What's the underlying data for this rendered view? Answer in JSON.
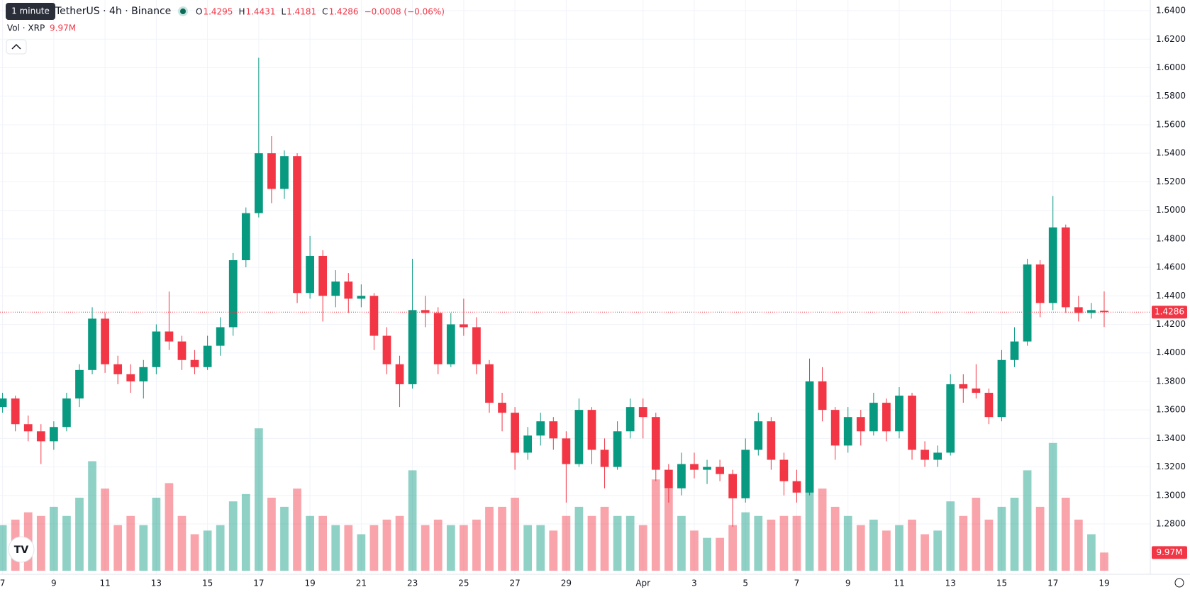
{
  "chart_data": {
    "type": "candlestick",
    "header": {
      "symbol": "TetherUS · 4h · Binance",
      "tooltip": "1 minute",
      "ohlc": [
        {
          "label": "O",
          "value": "1.4295"
        },
        {
          "label": "H",
          "value": "1.4431"
        },
        {
          "label": "L",
          "value": "1.4181"
        },
        {
          "label": "C",
          "value": "1.4286"
        }
      ],
      "change": "−0.0008 (−0.06%)",
      "vol_label": "Vol · XRP",
      "vol_value": "9.97M",
      "price_tag": "1.4286"
    },
    "up_color": "#089981",
    "down_color": "#f23645",
    "grid": true,
    "x": [
      0,
      0.5,
      1,
      1.5,
      2,
      2.5,
      3,
      3.5,
      4,
      4.5,
      5,
      5.5,
      6,
      6.5,
      7,
      7.5,
      8,
      8.5,
      9,
      9.5,
      10,
      10.5,
      11,
      11.5,
      12,
      12.5,
      13,
      13.5,
      14,
      14.5,
      15,
      15.5,
      16,
      16.5,
      17,
      17.5,
      18,
      18.5,
      19,
      19.5,
      20,
      20.5,
      21,
      21.5,
      22,
      22.5,
      23,
      23.5,
      24,
      24.5,
      25,
      25.5,
      26,
      26.5,
      27,
      27.5,
      28,
      28.5,
      29,
      29.5,
      30,
      30.5,
      31,
      31.5,
      32,
      32.5,
      33,
      33.5,
      34,
      34.5,
      35,
      35.5,
      36,
      36.5,
      37,
      37.5,
      38,
      38.5,
      39,
      39.5,
      40,
      40.5,
      41,
      41.5,
      42,
      42.5,
      43
    ],
    "open": [
      1.362,
      1.368,
      1.35,
      1.345,
      1.338,
      1.348,
      1.368,
      1.388,
      1.424,
      1.392,
      1.385,
      1.38,
      1.39,
      1.415,
      1.408,
      1.395,
      1.39,
      1.405,
      1.418,
      1.465,
      1.498,
      1.54,
      1.515,
      1.538,
      1.442,
      1.468,
      1.44,
      1.45,
      1.438,
      1.44,
      1.412,
      1.392,
      1.378,
      1.43,
      1.428,
      1.392,
      1.42,
      1.418,
      1.392,
      1.365,
      1.358,
      1.33,
      1.342,
      1.352,
      1.34,
      1.322,
      1.36,
      1.332,
      1.32,
      1.345,
      1.362,
      1.355,
      1.318,
      1.305,
      1.322,
      1.318,
      1.32,
      1.315,
      1.298,
      1.332,
      1.352,
      1.325,
      1.31,
      1.302,
      1.38,
      1.36,
      1.335,
      1.355,
      1.345,
      1.365,
      1.345,
      1.37,
      1.332,
      1.325,
      1.33,
      1.378,
      1.375,
      1.372,
      1.355,
      1.395,
      1.408,
      1.462,
      1.435,
      1.488,
      1.432,
      1.428,
      1.4295
    ],
    "high": [
      1.372,
      1.37,
      1.356,
      1.35,
      1.352,
      1.372,
      1.392,
      1.432,
      1.428,
      1.398,
      1.392,
      1.395,
      1.42,
      1.443,
      1.412,
      1.402,
      1.412,
      1.425,
      1.47,
      1.502,
      1.607,
      1.552,
      1.542,
      1.54,
      1.482,
      1.472,
      1.458,
      1.456,
      1.448,
      1.442,
      1.418,
      1.398,
      1.466,
      1.44,
      1.432,
      1.428,
      1.438,
      1.425,
      1.395,
      1.372,
      1.362,
      1.348,
      1.358,
      1.355,
      1.345,
      1.368,
      1.362,
      1.34,
      1.352,
      1.368,
      1.368,
      1.358,
      1.322,
      1.33,
      1.33,
      1.325,
      1.325,
      1.318,
      1.34,
      1.358,
      1.355,
      1.33,
      1.318,
      1.396,
      1.39,
      1.362,
      1.362,
      1.36,
      1.372,
      1.368,
      1.376,
      1.372,
      1.338,
      1.335,
      1.385,
      1.385,
      1.392,
      1.375,
      1.402,
      1.418,
      1.466,
      1.465,
      1.51,
      1.49,
      1.44,
      1.435,
      1.4431
    ],
    "low": [
      1.358,
      1.345,
      1.338,
      1.322,
      1.332,
      1.345,
      1.362,
      1.385,
      1.386,
      1.378,
      1.372,
      1.368,
      1.385,
      1.402,
      1.388,
      1.385,
      1.388,
      1.398,
      1.412,
      1.46,
      1.495,
      1.505,
      1.508,
      1.435,
      1.438,
      1.422,
      1.432,
      1.428,
      1.432,
      1.402,
      1.385,
      1.362,
      1.375,
      1.418,
      1.385,
      1.39,
      1.412,
      1.385,
      1.358,
      1.345,
      1.318,
      1.325,
      1.335,
      1.332,
      1.295,
      1.32,
      1.322,
      1.305,
      1.318,
      1.34,
      1.34,
      1.31,
      1.295,
      1.3,
      1.312,
      1.308,
      1.31,
      1.278,
      1.295,
      1.328,
      1.318,
      1.3,
      1.295,
      1.3,
      1.352,
      1.325,
      1.33,
      1.335,
      1.342,
      1.338,
      1.34,
      1.325,
      1.32,
      1.32,
      1.328,
      1.365,
      1.368,
      1.35,
      1.352,
      1.39,
      1.405,
      1.425,
      1.43,
      1.428,
      1.422,
      1.424,
      1.4181
    ],
    "close": [
      1.368,
      1.35,
      1.345,
      1.338,
      1.348,
      1.368,
      1.388,
      1.424,
      1.392,
      1.385,
      1.38,
      1.39,
      1.415,
      1.408,
      1.395,
      1.39,
      1.405,
      1.418,
      1.465,
      1.498,
      1.54,
      1.515,
      1.538,
      1.442,
      1.468,
      1.44,
      1.45,
      1.438,
      1.44,
      1.412,
      1.392,
      1.378,
      1.43,
      1.428,
      1.392,
      1.42,
      1.418,
      1.392,
      1.365,
      1.358,
      1.33,
      1.342,
      1.352,
      1.34,
      1.322,
      1.36,
      1.332,
      1.32,
      1.345,
      1.362,
      1.355,
      1.318,
      1.305,
      1.322,
      1.318,
      1.32,
      1.315,
      1.298,
      1.332,
      1.352,
      1.325,
      1.31,
      1.302,
      1.38,
      1.36,
      1.335,
      1.355,
      1.345,
      1.365,
      1.345,
      1.37,
      1.332,
      1.325,
      1.33,
      1.378,
      1.375,
      1.372,
      1.355,
      1.395,
      1.408,
      1.462,
      1.435,
      1.488,
      1.432,
      1.428,
      1.43,
      1.4286
    ],
    "volume": [
      25,
      28,
      32,
      30,
      35,
      30,
      40,
      60,
      45,
      25,
      30,
      25,
      40,
      48,
      30,
      20,
      22,
      25,
      38,
      42,
      78,
      40,
      35,
      45,
      30,
      30,
      25,
      25,
      20,
      25,
      28,
      30,
      55,
      25,
      28,
      25,
      25,
      28,
      35,
      35,
      40,
      25,
      25,
      22,
      30,
      35,
      30,
      35,
      30,
      30,
      25,
      50,
      45,
      30,
      22,
      18,
      18,
      25,
      32,
      30,
      28,
      30,
      30,
      50,
      45,
      35,
      30,
      25,
      28,
      22,
      25,
      28,
      20,
      22,
      38,
      30,
      40,
      28,
      35,
      40,
      55,
      35,
      70,
      40,
      28,
      20,
      9.97
    ],
    "xlim": [
      -0.1,
      44.8
    ],
    "ylim": [
      1.2447,
      1.6475
    ],
    "vlim": [
      0,
      80
    ],
    "xticks": [
      {
        "value": 0,
        "label": "7"
      },
      {
        "value": 2,
        "label": "9"
      },
      {
        "value": 4,
        "label": "11"
      },
      {
        "value": 6,
        "label": "13"
      },
      {
        "value": 8,
        "label": "15"
      },
      {
        "value": 10,
        "label": "17"
      },
      {
        "value": 12,
        "label": "19"
      },
      {
        "value": 14,
        "label": "21"
      },
      {
        "value": 16,
        "label": "23"
      },
      {
        "value": 18,
        "label": "25"
      },
      {
        "value": 20,
        "label": "27"
      },
      {
        "value": 22,
        "label": "29"
      },
      {
        "value": 25,
        "label": "Apr"
      },
      {
        "value": 27,
        "label": "3"
      },
      {
        "value": 29,
        "label": "5"
      },
      {
        "value": 31,
        "label": "7"
      },
      {
        "value": 33,
        "label": "9"
      },
      {
        "value": 35,
        "label": "11"
      },
      {
        "value": 37,
        "label": "13"
      },
      {
        "value": 39,
        "label": "15"
      },
      {
        "value": 41,
        "label": "17"
      },
      {
        "value": 43,
        "label": "19"
      }
    ],
    "yticks": [
      {
        "value": 1.28,
        "label": "1.2800"
      },
      {
        "value": 1.3,
        "label": "1.3000"
      },
      {
        "value": 1.32,
        "label": "1.3200"
      },
      {
        "value": 1.34,
        "label": "1.3400"
      },
      {
        "value": 1.36,
        "label": "1.3600"
      },
      {
        "value": 1.38,
        "label": "1.3800"
      },
      {
        "value": 1.4,
        "label": "1.4000"
      },
      {
        "value": 1.42,
        "label": "1.4200"
      },
      {
        "value": 1.44,
        "label": "1.4400"
      },
      {
        "value": 1.46,
        "label": "1.4600"
      },
      {
        "value": 1.48,
        "label": "1.4800"
      },
      {
        "value": 1.5,
        "label": "1.5000"
      },
      {
        "value": 1.52,
        "label": "1.5200"
      },
      {
        "value": 1.54,
        "label": "1.5400"
      },
      {
        "value": 1.56,
        "label": "1.5600"
      },
      {
        "value": 1.58,
        "label": "1.5800"
      },
      {
        "value": 1.6,
        "label": "1.6000"
      },
      {
        "value": 1.62,
        "label": "1.6200"
      },
      {
        "value": 1.64,
        "label": "1.6400"
      }
    ]
  }
}
